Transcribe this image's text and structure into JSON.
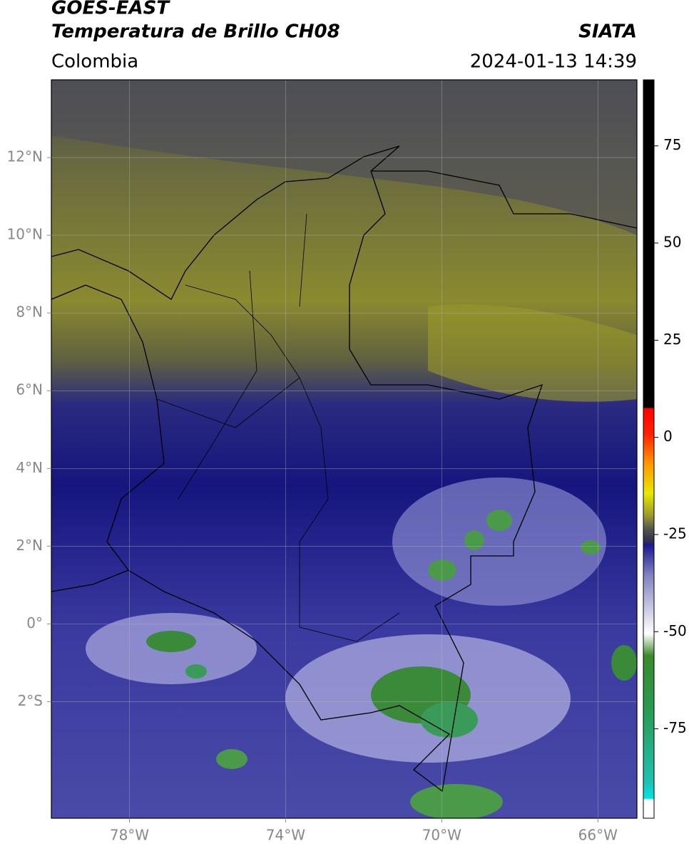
{
  "header": {
    "title": "GOES-EAST",
    "subtitle": "Temperatura de Brillo CH08",
    "region": "Colombia",
    "source": "SIATA",
    "datetime": "2024-01-13 14:39"
  },
  "map": {
    "xlim": [
      -80,
      -65
    ],
    "ylim": [
      -5,
      14
    ],
    "xticks": [
      {
        "value": -78,
        "label": "78°W"
      },
      {
        "value": -74,
        "label": "74°W"
      },
      {
        "value": -70,
        "label": "70°W"
      },
      {
        "value": -66,
        "label": "66°W"
      }
    ],
    "yticks": [
      {
        "value": 12,
        "label": "12°N"
      },
      {
        "value": 10,
        "label": "10°N"
      },
      {
        "value": 8,
        "label": "8°N"
      },
      {
        "value": 6,
        "label": "6°N"
      },
      {
        "value": 4,
        "label": "4°N"
      },
      {
        "value": 2,
        "label": "2°N"
      },
      {
        "value": 0,
        "label": "0°"
      },
      {
        "value": -2,
        "label": "2°S"
      }
    ]
  },
  "colorbar": {
    "lim": [
      -98,
      92
    ],
    "ticks": [
      75,
      50,
      25,
      0,
      -25,
      -50,
      -75
    ]
  }
}
